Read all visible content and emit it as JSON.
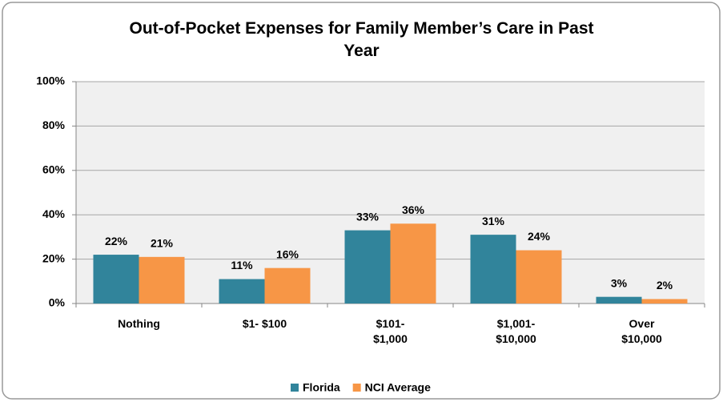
{
  "chart_data": {
    "type": "bar",
    "title": "Out-of-Pocket Expenses for Family Member’s Care in Past Year",
    "categories": [
      "Nothing",
      "$1- $100",
      "$101- $1,000",
      "$1,001- $10,000",
      "Over $10,000"
    ],
    "series": [
      {
        "name": "Florida",
        "color": "#31849b",
        "values": [
          22,
          11,
          33,
          31,
          3
        ],
        "value_labels": [
          "22%",
          "11%",
          "33%",
          "31%",
          "3%"
        ]
      },
      {
        "name": "NCI Average",
        "color": "#f79646",
        "values": [
          21,
          16,
          36,
          24,
          2
        ],
        "value_labels": [
          "21%",
          "16%",
          "36%",
          "24%",
          "2%"
        ]
      }
    ],
    "ylim": [
      0,
      100
    ],
    "yticks": [
      {
        "value": 0,
        "label": "0%"
      },
      {
        "value": 20,
        "label": "20%"
      },
      {
        "value": 40,
        "label": "40%"
      },
      {
        "value": 60,
        "label": "60%"
      },
      {
        "value": 80,
        "label": "80%"
      },
      {
        "value": 100,
        "label": "100%"
      }
    ],
    "grid": true,
    "legend": "bottom"
  }
}
